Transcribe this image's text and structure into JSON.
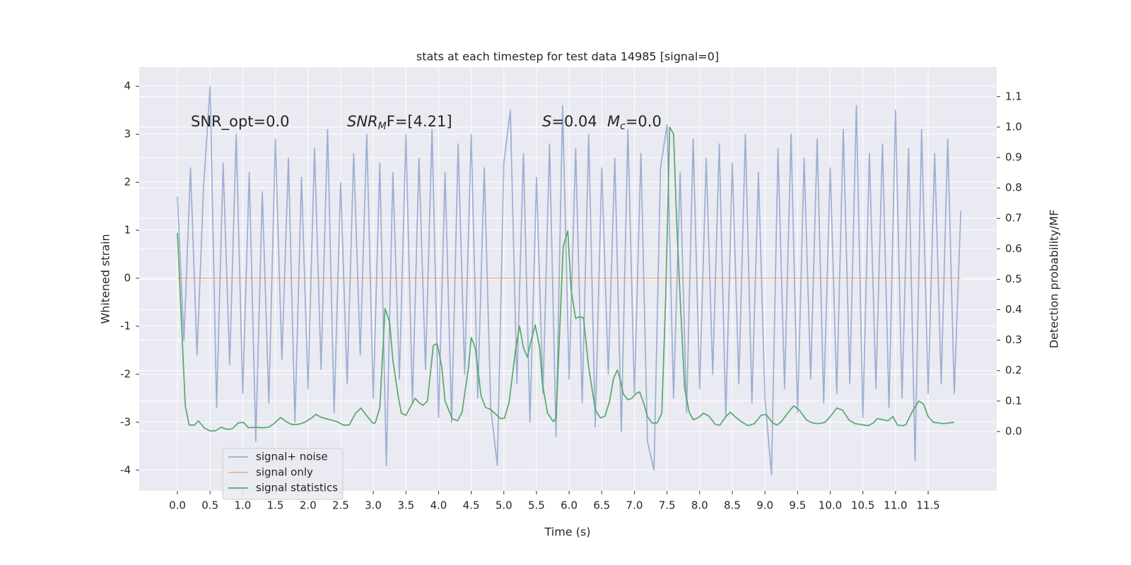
{
  "chart_data": {
    "type": "line",
    "title": "stats at each timestep for test data 14985 [signal=0]",
    "xlabel": "Time (s)",
    "ylabel": "Whitened strain",
    "y2label": "Detection probability/MF",
    "xlim": [
      -0.585,
      12.55
    ],
    "ylim": [
      -4.43,
      4.4
    ],
    "y2lim": [
      -0.195,
      1.197
    ],
    "xticks": [
      {
        "value": 0,
        "label": "0.0"
      },
      0.5,
      {
        "value": 1,
        "label": "1.0"
      },
      1.5,
      {
        "value": 2,
        "label": "2.0"
      },
      2.5,
      {
        "value": 3,
        "label": "3.0"
      },
      3.5,
      {
        "value": 4,
        "label": "4.0"
      },
      4.5,
      {
        "value": 5,
        "label": "5.0"
      },
      5.5,
      {
        "value": 6,
        "label": "6.0"
      },
      6.5,
      {
        "value": 7,
        "label": "7.0"
      },
      7.5,
      {
        "value": 8,
        "label": "8.0"
      },
      8.5,
      {
        "value": 9,
        "label": "9.0"
      },
      9.5,
      {
        "value": 10,
        "label": "10.0"
      },
      10.5,
      {
        "value": 11,
        "label": "11.0"
      },
      11.5
    ],
    "yticks": [
      -4,
      -3,
      -2,
      -1,
      0,
      1,
      2,
      3,
      4
    ],
    "y2ticks": [
      {
        "value": 0,
        "label": "0.0"
      },
      0.1,
      0.2,
      0.3,
      0.4,
      0.5,
      0.6,
      0.7,
      0.8,
      0.9,
      {
        "value": 1,
        "label": "1.0"
      },
      1.1
    ],
    "grid": true,
    "legend": "lower left",
    "annotations": [
      {
        "text": "SNR_opt=0.0"
      },
      {
        "math": "SNR",
        "sub": "M",
        "text": "F=[4.21]"
      },
      {
        "math": "S",
        "text": "=0.04"
      },
      {
        "math": "M",
        "sub": "c",
        "text": "=0.0"
      }
    ],
    "series": [
      {
        "name": "signal+ noise",
        "color": "#4c72b0",
        "alpha": 0.5,
        "x": [
          0,
          0.1,
          0.2,
          0.3,
          0.4,
          0.5,
          0.6,
          0.7,
          0.8,
          0.9,
          1,
          1.1,
          1.2,
          1.3,
          1.4,
          1.5,
          1.6,
          1.7,
          1.8,
          1.9,
          2,
          2.1,
          2.2,
          2.3,
          2.4,
          2.5,
          2.6,
          2.7,
          2.8,
          2.9,
          3,
          3.1,
          3.2,
          3.3,
          3.4,
          3.5,
          3.6,
          3.7,
          3.8,
          3.9,
          4,
          4.1,
          4.2,
          4.3,
          4.4,
          4.5,
          4.6,
          4.7,
          4.8,
          4.9,
          5,
          5.1,
          5.2,
          5.3,
          5.4,
          5.5,
          5.6,
          5.7,
          5.8,
          5.9,
          6,
          6.1,
          6.2,
          6.3,
          6.4,
          6.5,
          6.6,
          6.7,
          6.8,
          6.9,
          7,
          7.1,
          7.2,
          7.3,
          7.4,
          7.5,
          7.6,
          7.7,
          7.8,
          7.9,
          8,
          8.1,
          8.2,
          8.3,
          8.4,
          8.5,
          8.6,
          8.7,
          8.8,
          8.9,
          9,
          9.1,
          9.2,
          9.3,
          9.4,
          9.5,
          9.6,
          9.7,
          9.8,
          9.9,
          10,
          10.1,
          10.2,
          10.3,
          10.4,
          10.5,
          10.6,
          10.7,
          10.8,
          10.9,
          11,
          11.1,
          11.2,
          11.3,
          11.4,
          11.5,
          11.6,
          11.7,
          11.8,
          11.9,
          12
        ],
        "values": [
          1.7,
          -1.3,
          2.3,
          -1.6,
          1.9,
          4.0,
          -2.7,
          2.4,
          -1.8,
          3.0,
          -2.4,
          2.2,
          -3.4,
          1.8,
          -2.6,
          2.9,
          -1.7,
          2.5,
          -3.0,
          2.1,
          -2.3,
          2.7,
          -1.9,
          3.1,
          -2.8,
          2.0,
          -2.2,
          2.6,
          -1.6,
          3.0,
          -2.5,
          2.4,
          -3.9,
          2.2,
          -2.1,
          3.0,
          -2.6,
          2.5,
          -1.9,
          3.1,
          -2.9,
          2.2,
          -3.0,
          2.8,
          -2.0,
          3.0,
          -2.5,
          2.3,
          -2.7,
          -3.9,
          2.4,
          3.5,
          -2.2,
          2.6,
          -3.0,
          2.1,
          -2.4,
          2.8,
          -3.3,
          3.6,
          -2.1,
          2.7,
          -2.6,
          3.0,
          -3.1,
          2.3,
          -2.0,
          2.5,
          -3.2,
          3.1,
          -2.4,
          2.6,
          -3.4,
          -4.0,
          2.3,
          3.2,
          -2.5,
          2.2,
          -2.8,
          2.9,
          -2.3,
          2.5,
          -2.0,
          2.8,
          -2.9,
          2.4,
          -2.2,
          3.0,
          -2.6,
          2.2,
          -2.5,
          -4.1,
          2.7,
          -2.3,
          3.0,
          -2.8,
          2.5,
          -2.1,
          2.9,
          -2.6,
          2.3,
          -2.4,
          3.1,
          -2.2,
          3.6,
          -2.9,
          2.6,
          -2.3,
          2.8,
          -2.7,
          3.5,
          -2.5,
          2.7,
          -3.8,
          3.1,
          -2.4,
          2.6,
          -2.2,
          2.9,
          -2.4,
          1.4
        ]
      },
      {
        "name": "signal only",
        "color": "#dd8452",
        "alpha": 0.5,
        "x": [
          0,
          12
        ],
        "values": [
          0,
          0
        ]
      },
      {
        "name": "signal statistics",
        "color": "#55a868",
        "alpha": 1,
        "axis": "y2",
        "x": [
          0.0,
          0.12,
          0.18,
          0.26,
          0.32,
          0.41,
          0.5,
          0.58,
          0.67,
          0.76,
          0.84,
          0.93,
          1.01,
          1.09,
          1.2,
          1.29,
          1.4,
          1.48,
          1.58,
          1.67,
          1.75,
          1.84,
          1.95,
          2.05,
          2.12,
          2.21,
          2.33,
          2.45,
          2.54,
          2.63,
          2.73,
          2.81,
          2.91,
          2.99,
          3.03,
          3.1,
          3.18,
          3.25,
          3.3,
          3.38,
          3.43,
          3.5,
          3.57,
          3.64,
          3.7,
          3.76,
          3.83,
          3.92,
          3.98,
          4.05,
          4.1,
          4.21,
          4.29,
          4.36,
          4.46,
          4.5,
          4.56,
          4.6,
          4.65,
          4.72,
          4.8,
          4.86,
          4.95,
          5.01,
          5.08,
          5.18,
          5.24,
          5.3,
          5.36,
          5.41,
          5.48,
          5.55,
          5.59,
          5.67,
          5.76,
          5.8,
          5.91,
          5.98,
          6.03,
          6.1,
          6.15,
          6.22,
          6.3,
          6.4,
          6.48,
          6.55,
          6.62,
          6.68,
          6.74,
          6.79,
          6.83,
          6.9,
          6.96,
          7.03,
          7.08,
          7.14,
          7.2,
          7.27,
          7.35,
          7.42,
          7.48,
          7.54,
          7.6,
          7.65,
          7.71,
          7.77,
          7.84,
          7.9,
          7.97,
          8.06,
          8.14,
          8.24,
          8.31,
          8.4,
          8.47,
          8.54,
          8.64,
          8.74,
          8.84,
          8.94,
          9.02,
          9.11,
          9.18,
          9.25,
          9.34,
          9.44,
          9.52,
          9.64,
          9.73,
          9.83,
          9.92,
          10.0,
          10.1,
          10.19,
          10.29,
          10.38,
          10.47,
          10.58,
          10.66,
          10.72,
          10.81,
          10.88,
          10.96,
          11.03,
          11.11,
          11.16,
          11.26,
          11.36,
          11.43,
          11.5,
          11.58,
          11.74,
          11.9
        ],
        "values": [
          0.652,
          0.084,
          0.021,
          0.021,
          0.035,
          0.012,
          0.002,
          0.002,
          0.014,
          0.007,
          0.009,
          0.028,
          0.03,
          0.012,
          0.014,
          0.012,
          0.014,
          0.026,
          0.046,
          0.032,
          0.023,
          0.023,
          0.03,
          0.044,
          0.056,
          0.046,
          0.039,
          0.032,
          0.021,
          0.021,
          0.06,
          0.077,
          0.049,
          0.028,
          0.028,
          0.077,
          0.404,
          0.36,
          0.234,
          0.118,
          0.06,
          0.053,
          0.081,
          0.109,
          0.095,
          0.086,
          0.1,
          0.283,
          0.288,
          0.211,
          0.1,
          0.042,
          0.035,
          0.063,
          0.213,
          0.309,
          0.276,
          0.211,
          0.118,
          0.079,
          0.072,
          0.06,
          0.042,
          0.044,
          0.095,
          0.269,
          0.346,
          0.276,
          0.244,
          0.292,
          0.35,
          0.274,
          0.158,
          0.06,
          0.032,
          0.046,
          0.608,
          0.659,
          0.466,
          0.371,
          0.376,
          0.374,
          0.211,
          0.072,
          0.044,
          0.051,
          0.1,
          0.174,
          0.202,
          0.165,
          0.123,
          0.104,
          0.109,
          0.125,
          0.13,
          0.095,
          0.049,
          0.028,
          0.028,
          0.06,
          0.443,
          1.0,
          0.977,
          0.675,
          0.397,
          0.142,
          0.063,
          0.039,
          0.044,
          0.06,
          0.051,
          0.023,
          0.021,
          0.049,
          0.063,
          0.049,
          0.032,
          0.019,
          0.026,
          0.053,
          0.056,
          0.03,
          0.021,
          0.032,
          0.058,
          0.084,
          0.072,
          0.037,
          0.028,
          0.026,
          0.03,
          0.049,
          0.077,
          0.07,
          0.037,
          0.026,
          0.023,
          0.019,
          0.028,
          0.042,
          0.039,
          0.035,
          0.049,
          0.021,
          0.019,
          0.023,
          0.067,
          0.1,
          0.09,
          0.049,
          0.03,
          0.026,
          0.03
        ]
      }
    ]
  }
}
